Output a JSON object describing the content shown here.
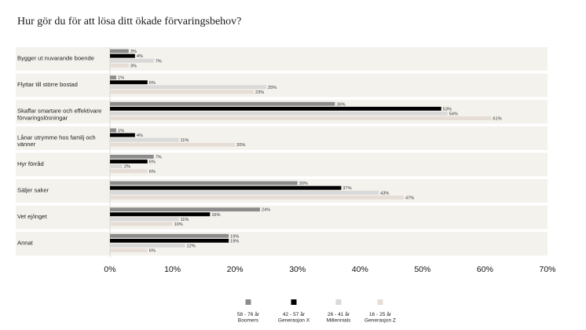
{
  "title": "Hur gör du för att lösa ditt ökade förvaringsbehov?",
  "chart_data": {
    "type": "bar",
    "orientation": "horizontal",
    "categories": [
      [
        "Bygger ut nuvarande boende"
      ],
      [
        "Flyttar till större bostad"
      ],
      [
        "Skaffar smartare och effektivare",
        "förvaringslösningar"
      ],
      [
        "Lånar utrymme hos familj och",
        "vänner"
      ],
      [
        "Hyr förråd"
      ],
      [
        "Säljer saker"
      ],
      [
        "Vet ej/inget"
      ],
      [
        "Annat"
      ]
    ],
    "series": [
      {
        "name": [
          "58 - 76 år",
          "Boomers"
        ],
        "color": "#8c8c8c",
        "values": [
          3,
          1,
          36,
          1,
          7,
          30,
          24,
          19
        ]
      },
      {
        "name": [
          "42 - 57 år",
          "Generasjon X"
        ],
        "color": "#000000",
        "values": [
          4,
          6,
          53,
          4,
          6,
          37,
          16,
          19
        ]
      },
      {
        "name": [
          "26 - 41 år",
          "Millennials"
        ],
        "color": "#d9d9d9",
        "values": [
          7,
          25,
          54,
          11,
          2,
          43,
          11,
          12
        ]
      },
      {
        "name": [
          "16 - 25 år",
          "Generasjon Z"
        ],
        "color": "#e6ddd6",
        "values": [
          3,
          23,
          61,
          20,
          6,
          47,
          10,
          6
        ]
      }
    ],
    "value_suffix": "%",
    "xlim": [
      0,
      70
    ],
    "xticks": [
      0,
      10,
      20,
      30,
      40,
      50,
      60,
      70
    ],
    "xtick_labels": [
      "0%",
      "10%",
      "20%",
      "30%",
      "40%",
      "50%",
      "60%",
      "70%"
    ],
    "band_color": "#f4f2ed",
    "legend_position": "bottom",
    "grid": false
  }
}
